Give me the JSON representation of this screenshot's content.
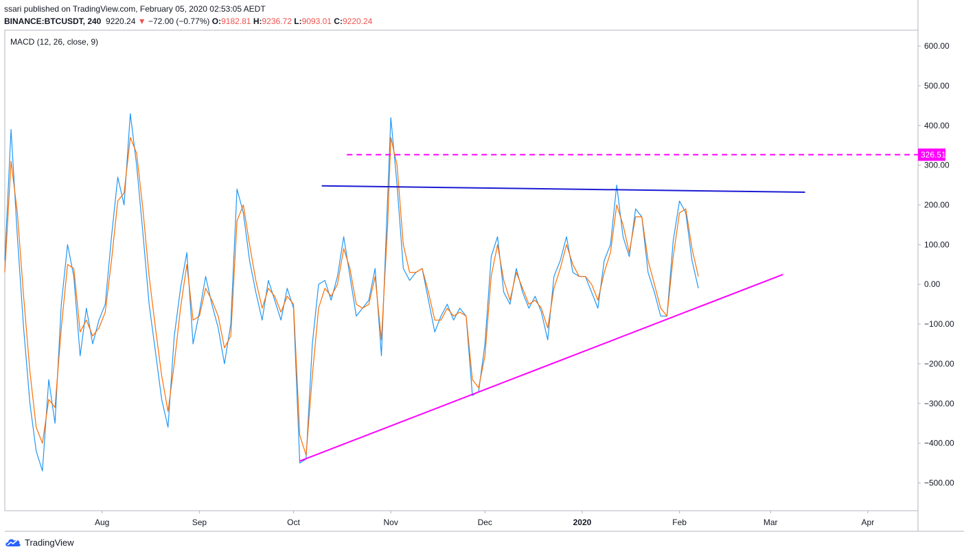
{
  "header": {
    "published": "ssari published on TradingView.com, February 05, 2020 02:53:05 AEDT",
    "symbol": "BINANCE:BTCUSDT, 240",
    "price": "9220.24",
    "change": "−72.00 (−0.77%)",
    "o_label": "O:",
    "o_val": "9182.81",
    "h_label": "H:",
    "h_val": "9236.72",
    "l_label": "L:",
    "l_val": "9093.01",
    "c_label": "C:",
    "c_val": "9220.24"
  },
  "footer": {
    "brand": "TradingView",
    "icon": "tradingview-cloud-logo-icon"
  },
  "colors": {
    "macd": "#2196f3",
    "signal": "#ff6d00",
    "trend_upper": "#1a1ad4",
    "trend_lower": "#ff00ff",
    "level": "#ff00ff",
    "axis_text": "#131722",
    "border": "#b2b5be",
    "down": "#ef5350"
  },
  "chart_data": {
    "type": "line",
    "indicator_label": "MACD (12, 26, close, 9)",
    "y_range": [
      -570,
      640
    ],
    "y_ticks": [
      600,
      500,
      400,
      300,
      200,
      100,
      0,
      -100,
      -200,
      -300,
      -400,
      -500
    ],
    "y_tick_labels": [
      "600.00",
      "500.00",
      "400.00",
      "300.00",
      "200.00",
      "100.00",
      "0.00",
      "−100.00",
      "−200.00",
      "−300.00",
      "−400.00",
      "−500.00"
    ],
    "x_range": [
      "2019-07-01",
      "2020-04-17"
    ],
    "x_ticks": [
      {
        "label": "Aug",
        "date": "2019-08-01",
        "bold": false
      },
      {
        "label": "Sep",
        "date": "2019-09-01",
        "bold": false
      },
      {
        "label": "Oct",
        "date": "2019-10-01",
        "bold": false
      },
      {
        "label": "Nov",
        "date": "2019-11-01",
        "bold": false
      },
      {
        "label": "Dec",
        "date": "2019-12-01",
        "bold": false
      },
      {
        "label": "2020",
        "date": "2020-01-01",
        "bold": true
      },
      {
        "label": "Feb",
        "date": "2020-02-01",
        "bold": false
      },
      {
        "label": "Mar",
        "date": "2020-03-01",
        "bold": false
      },
      {
        "label": "Apr",
        "date": "2020-04-01",
        "bold": false
      }
    ],
    "series": [
      {
        "role": "macd",
        "points": [
          [
            "2019-07-01",
            60
          ],
          [
            "2019-07-03",
            390
          ],
          [
            "2019-07-05",
            120
          ],
          [
            "2019-07-07",
            -110
          ],
          [
            "2019-07-09",
            -300
          ],
          [
            "2019-07-11",
            -420
          ],
          [
            "2019-07-13",
            -470
          ],
          [
            "2019-07-15",
            -240
          ],
          [
            "2019-07-17",
            -350
          ],
          [
            "2019-07-19",
            -50
          ],
          [
            "2019-07-21",
            100
          ],
          [
            "2019-07-23",
            20
          ],
          [
            "2019-07-25",
            -180
          ],
          [
            "2019-07-27",
            -60
          ],
          [
            "2019-07-29",
            -150
          ],
          [
            "2019-07-31",
            -90
          ],
          [
            "2019-08-02",
            -50
          ],
          [
            "2019-08-04",
            120
          ],
          [
            "2019-08-06",
            270
          ],
          [
            "2019-08-08",
            200
          ],
          [
            "2019-08-10",
            430
          ],
          [
            "2019-08-12",
            300
          ],
          [
            "2019-08-14",
            130
          ],
          [
            "2019-08-16",
            -50
          ],
          [
            "2019-08-18",
            -170
          ],
          [
            "2019-08-20",
            -290
          ],
          [
            "2019-08-22",
            -360
          ],
          [
            "2019-08-24",
            -130
          ],
          [
            "2019-08-26",
            -10
          ],
          [
            "2019-08-28",
            80
          ],
          [
            "2019-08-30",
            -150
          ],
          [
            "2019-09-01",
            -70
          ],
          [
            "2019-09-03",
            20
          ],
          [
            "2019-09-05",
            -50
          ],
          [
            "2019-09-07",
            -110
          ],
          [
            "2019-09-09",
            -200
          ],
          [
            "2019-09-11",
            -100
          ],
          [
            "2019-09-13",
            240
          ],
          [
            "2019-09-15",
            180
          ],
          [
            "2019-09-17",
            60
          ],
          [
            "2019-09-19",
            -20
          ],
          [
            "2019-09-21",
            -90
          ],
          [
            "2019-09-23",
            10
          ],
          [
            "2019-09-25",
            -40
          ],
          [
            "2019-09-27",
            -90
          ],
          [
            "2019-09-29",
            -10
          ],
          [
            "2019-10-01",
            -60
          ],
          [
            "2019-10-03",
            -450
          ],
          [
            "2019-10-05",
            -440
          ],
          [
            "2019-10-07",
            -150
          ],
          [
            "2019-10-09",
            0
          ],
          [
            "2019-10-11",
            10
          ],
          [
            "2019-10-13",
            -40
          ],
          [
            "2019-10-15",
            20
          ],
          [
            "2019-10-17",
            120
          ],
          [
            "2019-10-19",
            20
          ],
          [
            "2019-10-21",
            -80
          ],
          [
            "2019-10-23",
            -60
          ],
          [
            "2019-10-25",
            -40
          ],
          [
            "2019-10-27",
            40
          ],
          [
            "2019-10-29",
            -180
          ],
          [
            "2019-10-31",
            220
          ],
          [
            "2019-11-01",
            420
          ],
          [
            "2019-11-03",
            250
          ],
          [
            "2019-11-05",
            40
          ],
          [
            "2019-11-07",
            10
          ],
          [
            "2019-11-09",
            30
          ],
          [
            "2019-11-11",
            40
          ],
          [
            "2019-11-13",
            -40
          ],
          [
            "2019-11-15",
            -120
          ],
          [
            "2019-11-17",
            -80
          ],
          [
            "2019-11-19",
            -50
          ],
          [
            "2019-11-21",
            -90
          ],
          [
            "2019-11-23",
            -60
          ],
          [
            "2019-11-25",
            -80
          ],
          [
            "2019-11-27",
            -280
          ],
          [
            "2019-11-29",
            -270
          ],
          [
            "2019-12-01",
            -150
          ],
          [
            "2019-12-03",
            70
          ],
          [
            "2019-12-05",
            120
          ],
          [
            "2019-12-07",
            -20
          ],
          [
            "2019-12-09",
            -50
          ],
          [
            "2019-12-11",
            40
          ],
          [
            "2019-12-13",
            -20
          ],
          [
            "2019-12-15",
            -60
          ],
          [
            "2019-12-17",
            -30
          ],
          [
            "2019-12-19",
            -70
          ],
          [
            "2019-12-21",
            -140
          ],
          [
            "2019-12-23",
            20
          ],
          [
            "2019-12-25",
            60
          ],
          [
            "2019-12-27",
            120
          ],
          [
            "2019-12-29",
            30
          ],
          [
            "2019-12-31",
            20
          ],
          [
            "2020-01-02",
            20
          ],
          [
            "2020-01-04",
            -20
          ],
          [
            "2020-01-06",
            -60
          ],
          [
            "2020-01-08",
            60
          ],
          [
            "2020-01-10",
            100
          ],
          [
            "2020-01-12",
            250
          ],
          [
            "2020-01-14",
            120
          ],
          [
            "2020-01-16",
            70
          ],
          [
            "2020-01-18",
            190
          ],
          [
            "2020-01-20",
            170
          ],
          [
            "2020-01-22",
            30
          ],
          [
            "2020-01-24",
            -20
          ],
          [
            "2020-01-26",
            -80
          ],
          [
            "2020-01-28",
            -80
          ],
          [
            "2020-01-30",
            110
          ],
          [
            "2020-02-01",
            210
          ],
          [
            "2020-02-03",
            180
          ],
          [
            "2020-02-05",
            60
          ],
          [
            "2020-02-07",
            -10
          ]
        ]
      },
      {
        "role": "signal",
        "points": [
          [
            "2019-07-01",
            30
          ],
          [
            "2019-07-03",
            310
          ],
          [
            "2019-07-05",
            180
          ],
          [
            "2019-07-07",
            -30
          ],
          [
            "2019-07-09",
            -220
          ],
          [
            "2019-07-11",
            -360
          ],
          [
            "2019-07-13",
            -400
          ],
          [
            "2019-07-15",
            -290
          ],
          [
            "2019-07-17",
            -310
          ],
          [
            "2019-07-19",
            -110
          ],
          [
            "2019-07-21",
            50
          ],
          [
            "2019-07-23",
            40
          ],
          [
            "2019-07-25",
            -120
          ],
          [
            "2019-07-27",
            -90
          ],
          [
            "2019-07-29",
            -130
          ],
          [
            "2019-07-31",
            -110
          ],
          [
            "2019-08-02",
            -70
          ],
          [
            "2019-08-04",
            60
          ],
          [
            "2019-08-06",
            210
          ],
          [
            "2019-08-08",
            230
          ],
          [
            "2019-08-10",
            370
          ],
          [
            "2019-08-12",
            330
          ],
          [
            "2019-08-14",
            190
          ],
          [
            "2019-08-16",
            20
          ],
          [
            "2019-08-18",
            -110
          ],
          [
            "2019-08-20",
            -230
          ],
          [
            "2019-08-22",
            -320
          ],
          [
            "2019-08-24",
            -200
          ],
          [
            "2019-08-26",
            -60
          ],
          [
            "2019-08-28",
            50
          ],
          [
            "2019-08-30",
            -90
          ],
          [
            "2019-09-01",
            -80
          ],
          [
            "2019-09-03",
            -10
          ],
          [
            "2019-09-05",
            -40
          ],
          [
            "2019-09-07",
            -80
          ],
          [
            "2019-09-09",
            -160
          ],
          [
            "2019-09-11",
            -130
          ],
          [
            "2019-09-13",
            160
          ],
          [
            "2019-09-15",
            200
          ],
          [
            "2019-09-17",
            100
          ],
          [
            "2019-09-19",
            10
          ],
          [
            "2019-09-21",
            -60
          ],
          [
            "2019-09-23",
            -10
          ],
          [
            "2019-09-25",
            -30
          ],
          [
            "2019-09-27",
            -70
          ],
          [
            "2019-09-29",
            -30
          ],
          [
            "2019-10-01",
            -50
          ],
          [
            "2019-10-03",
            -380
          ],
          [
            "2019-10-05",
            -430
          ],
          [
            "2019-10-07",
            -230
          ],
          [
            "2019-10-09",
            -60
          ],
          [
            "2019-10-11",
            -10
          ],
          [
            "2019-10-13",
            -30
          ],
          [
            "2019-10-15",
            0
          ],
          [
            "2019-10-17",
            90
          ],
          [
            "2019-10-19",
            40
          ],
          [
            "2019-10-21",
            -50
          ],
          [
            "2019-10-23",
            -60
          ],
          [
            "2019-10-25",
            -50
          ],
          [
            "2019-10-27",
            20
          ],
          [
            "2019-10-29",
            -140
          ],
          [
            "2019-10-31",
            150
          ],
          [
            "2019-11-01",
            370
          ],
          [
            "2019-11-03",
            300
          ],
          [
            "2019-11-05",
            100
          ],
          [
            "2019-11-07",
            30
          ],
          [
            "2019-11-09",
            30
          ],
          [
            "2019-11-11",
            40
          ],
          [
            "2019-11-13",
            -20
          ],
          [
            "2019-11-15",
            -90
          ],
          [
            "2019-11-17",
            -90
          ],
          [
            "2019-11-19",
            -60
          ],
          [
            "2019-11-21",
            -80
          ],
          [
            "2019-11-23",
            -70
          ],
          [
            "2019-11-25",
            -80
          ],
          [
            "2019-11-27",
            -240
          ],
          [
            "2019-11-29",
            -260
          ],
          [
            "2019-12-01",
            -180
          ],
          [
            "2019-12-03",
            20
          ],
          [
            "2019-12-05",
            100
          ],
          [
            "2019-12-07",
            10
          ],
          [
            "2019-12-09",
            -40
          ],
          [
            "2019-12-11",
            30
          ],
          [
            "2019-12-13",
            -10
          ],
          [
            "2019-12-15",
            -50
          ],
          [
            "2019-12-17",
            -40
          ],
          [
            "2019-12-19",
            -60
          ],
          [
            "2019-12-21",
            -110
          ],
          [
            "2019-12-23",
            -10
          ],
          [
            "2019-12-25",
            40
          ],
          [
            "2019-12-27",
            100
          ],
          [
            "2019-12-29",
            50
          ],
          [
            "2019-12-31",
            20
          ],
          [
            "2020-01-02",
            20
          ],
          [
            "2020-01-04",
            0
          ],
          [
            "2020-01-06",
            -40
          ],
          [
            "2020-01-08",
            30
          ],
          [
            "2020-01-10",
            80
          ],
          [
            "2020-01-12",
            200
          ],
          [
            "2020-01-14",
            150
          ],
          [
            "2020-01-16",
            80
          ],
          [
            "2020-01-18",
            170
          ],
          [
            "2020-01-20",
            170
          ],
          [
            "2020-01-22",
            60
          ],
          [
            "2020-01-24",
            0
          ],
          [
            "2020-01-26",
            -60
          ],
          [
            "2020-01-28",
            -80
          ],
          [
            "2020-01-30",
            70
          ],
          [
            "2020-02-01",
            180
          ],
          [
            "2020-02-03",
            190
          ],
          [
            "2020-02-05",
            90
          ],
          [
            "2020-02-07",
            20
          ]
        ]
      }
    ],
    "drawings": [
      {
        "role": "upper_trendline",
        "from": [
          "2019-10-10",
          248
        ],
        "to": [
          "2020-03-12",
          232
        ]
      },
      {
        "role": "lower_trendline",
        "from": [
          "2019-10-03",
          -445
        ],
        "to": [
          "2020-03-05",
          25
        ]
      },
      {
        "role": "horizontal_level",
        "from_date": "2019-10-18",
        "value": 326.51,
        "dashed": true,
        "label": "326.51"
      }
    ]
  }
}
